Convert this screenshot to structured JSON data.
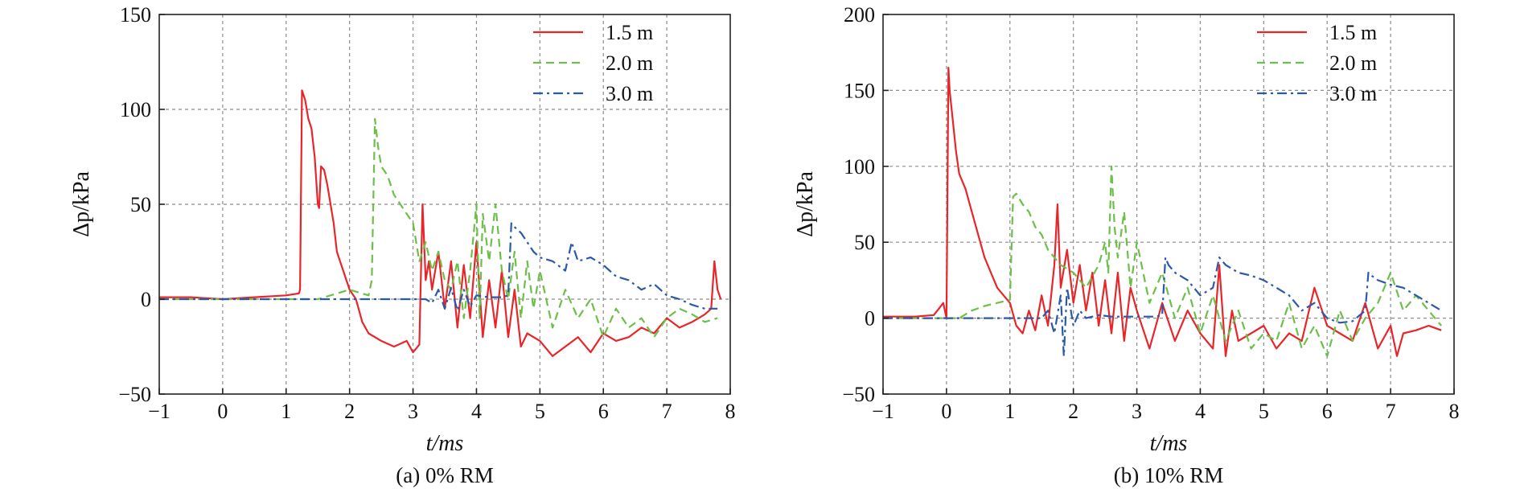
{
  "chart_data": [
    {
      "type": "line",
      "caption": "(a) 0% RM",
      "xlabel": "t/ms",
      "ylabel": "Δp/kPa",
      "xlim": [
        -1,
        8
      ],
      "ylim": [
        -50,
        150
      ],
      "xticks": [
        -1,
        0,
        1,
        2,
        3,
        4,
        5,
        6,
        7,
        8
      ],
      "yticks": [
        -50,
        0,
        50,
        100,
        150
      ],
      "grid": true,
      "legend_position": "top-right",
      "series": [
        {
          "name": "1.5 m",
          "color": "#e8262a",
          "dash": "solid",
          "x": [
            -1.0,
            -0.5,
            0.0,
            0.5,
            1.0,
            1.2,
            1.22,
            1.25,
            1.3,
            1.35,
            1.4,
            1.45,
            1.5,
            1.52,
            1.55,
            1.6,
            1.65,
            1.7,
            1.75,
            1.8,
            1.85,
            1.9,
            1.95,
            2.0,
            2.1,
            2.2,
            2.3,
            2.5,
            2.7,
            2.9,
            3.0,
            3.1,
            3.15,
            3.2,
            3.25,
            3.3,
            3.4,
            3.5,
            3.6,
            3.7,
            3.8,
            3.9,
            4.0,
            4.1,
            4.2,
            4.3,
            4.4,
            4.5,
            4.6,
            4.7,
            4.8,
            5.0,
            5.2,
            5.4,
            5.6,
            5.8,
            6.0,
            6.2,
            6.4,
            6.6,
            6.8,
            7.0,
            7.2,
            7.4,
            7.6,
            7.7,
            7.75,
            7.8,
            7.85
          ],
          "y": [
            1,
            1,
            0,
            1,
            2,
            3,
            5,
            110,
            105,
            95,
            90,
            75,
            50,
            48,
            70,
            68,
            60,
            50,
            40,
            25,
            20,
            15,
            10,
            5,
            0,
            -12,
            -18,
            -22,
            -25,
            -22,
            -28,
            -24,
            50,
            10,
            20,
            5,
            25,
            -5,
            20,
            -15,
            18,
            -10,
            30,
            -20,
            10,
            -15,
            15,
            -20,
            5,
            -25,
            -18,
            -22,
            -30,
            -25,
            -20,
            -28,
            -18,
            -22,
            -20,
            -15,
            -18,
            -10,
            -15,
            -12,
            -8,
            -5,
            20,
            5,
            0
          ]
        },
        {
          "name": "2.0 m",
          "color": "#6cc04a",
          "dash": "dashed",
          "x": [
            -1.0,
            0.0,
            1.0,
            1.5,
            2.0,
            2.3,
            2.35,
            2.4,
            2.45,
            2.5,
            2.6,
            2.7,
            2.8,
            2.9,
            3.0,
            3.1,
            3.2,
            3.3,
            3.4,
            3.5,
            3.6,
            3.7,
            3.8,
            3.9,
            4.0,
            4.05,
            4.1,
            4.2,
            4.3,
            4.4,
            4.5,
            4.6,
            4.7,
            4.8,
            4.9,
            5.0,
            5.2,
            5.4,
            5.6,
            5.8,
            6.0,
            6.2,
            6.4,
            6.6,
            6.8,
            7.0,
            7.2,
            7.4,
            7.6,
            7.8
          ],
          "y": [
            0,
            0,
            0,
            0,
            5,
            2,
            10,
            95,
            80,
            70,
            65,
            55,
            50,
            45,
            40,
            20,
            30,
            15,
            25,
            10,
            5,
            20,
            -10,
            15,
            50,
            -10,
            45,
            20,
            50,
            15,
            0,
            25,
            -10,
            20,
            -5,
            15,
            -15,
            5,
            -10,
            0,
            -20,
            -5,
            -15,
            -10,
            -20,
            -10,
            -5,
            -8,
            -12,
            -10
          ]
        },
        {
          "name": "3.0 m",
          "color": "#2a59a8",
          "dash": "dashdot",
          "x": [
            -1.0,
            0.0,
            1.0,
            2.0,
            3.0,
            3.2,
            3.3,
            3.4,
            3.5,
            3.6,
            3.7,
            3.8,
            3.9,
            4.0,
            4.2,
            4.4,
            4.5,
            4.55,
            4.6,
            4.7,
            4.8,
            4.9,
            5.0,
            5.2,
            5.4,
            5.5,
            5.6,
            5.8,
            6.0,
            6.2,
            6.4,
            6.6,
            6.8,
            7.0,
            7.2,
            7.4,
            7.6,
            7.8
          ],
          "y": [
            0,
            0,
            0,
            0,
            0,
            0,
            -2,
            5,
            -5,
            6,
            -6,
            5,
            -4,
            2,
            1,
            1,
            2,
            40,
            38,
            35,
            30,
            25,
            22,
            20,
            15,
            30,
            20,
            22,
            18,
            12,
            10,
            5,
            8,
            2,
            0,
            -3,
            -5,
            -5
          ]
        }
      ]
    },
    {
      "type": "line",
      "caption": "(b) 10% RM",
      "xlabel": "t/ms",
      "ylabel": "Δp/kPa",
      "xlim": [
        -1,
        8
      ],
      "ylim": [
        -50,
        200
      ],
      "xticks": [
        -1,
        0,
        1,
        2,
        3,
        4,
        5,
        6,
        7,
        8
      ],
      "yticks": [
        -50,
        0,
        50,
        100,
        150,
        200
      ],
      "grid": true,
      "legend_position": "top-right",
      "series": [
        {
          "name": "1.5 m",
          "color": "#e8262a",
          "dash": "solid",
          "x": [
            -1.0,
            -0.5,
            -0.2,
            -0.05,
            0.0,
            0.03,
            0.05,
            0.1,
            0.15,
            0.2,
            0.3,
            0.4,
            0.5,
            0.6,
            0.7,
            0.8,
            0.9,
            1.0,
            1.1,
            1.2,
            1.3,
            1.4,
            1.5,
            1.6,
            1.7,
            1.75,
            1.8,
            1.9,
            2.0,
            2.1,
            2.2,
            2.3,
            2.4,
            2.5,
            2.6,
            2.7,
            2.8,
            2.9,
            3.0,
            3.2,
            3.4,
            3.6,
            3.8,
            4.0,
            4.2,
            4.3,
            4.4,
            4.5,
            4.6,
            4.8,
            5.0,
            5.2,
            5.4,
            5.6,
            5.8,
            6.0,
            6.2,
            6.4,
            6.6,
            6.8,
            7.0,
            7.1,
            7.2,
            7.4,
            7.6,
            7.8
          ],
          "y": [
            1,
            1,
            2,
            10,
            0,
            165,
            150,
            130,
            110,
            95,
            85,
            70,
            55,
            40,
            30,
            20,
            15,
            10,
            -5,
            -10,
            5,
            -8,
            15,
            -5,
            35,
            75,
            20,
            45,
            10,
            35,
            5,
            30,
            -5,
            25,
            -10,
            30,
            -15,
            20,
            5,
            -20,
            10,
            -15,
            5,
            -10,
            -20,
            35,
            -25,
            5,
            -15,
            -10,
            -5,
            -20,
            -10,
            -15,
            20,
            -5,
            -10,
            -15,
            10,
            -20,
            -5,
            -25,
            -10,
            -8,
            -5,
            -8
          ]
        },
        {
          "name": "2.0 m",
          "color": "#6cc04a",
          "dash": "dashed",
          "x": [
            -1.0,
            0.0,
            0.2,
            0.4,
            0.6,
            0.8,
            1.0,
            1.05,
            1.1,
            1.2,
            1.3,
            1.4,
            1.5,
            1.6,
            1.7,
            1.8,
            2.0,
            2.2,
            2.4,
            2.5,
            2.55,
            2.6,
            2.65,
            2.7,
            2.8,
            2.9,
            3.0,
            3.2,
            3.4,
            3.6,
            3.8,
            4.0,
            4.2,
            4.4,
            4.6,
            4.8,
            5.0,
            5.2,
            5.4,
            5.6,
            5.8,
            6.0,
            6.2,
            6.4,
            6.6,
            6.8,
            7.0,
            7.2,
            7.4,
            7.6,
            7.8
          ],
          "y": [
            0,
            0,
            0,
            5,
            8,
            10,
            12,
            80,
            82,
            75,
            70,
            60,
            55,
            45,
            40,
            35,
            30,
            20,
            35,
            50,
            30,
            100,
            60,
            40,
            70,
            20,
            50,
            10,
            30,
            0,
            20,
            -10,
            15,
            -15,
            5,
            -20,
            -10,
            -15,
            10,
            -20,
            -5,
            -25,
            5,
            -15,
            0,
            10,
            30,
            5,
            15,
            5,
            -5
          ]
        },
        {
          "name": "3.0 m",
          "color": "#2a59a8",
          "dash": "dashdot",
          "x": [
            -1.0,
            0.0,
            1.0,
            1.5,
            1.6,
            1.7,
            1.8,
            1.85,
            1.9,
            2.0,
            2.1,
            2.2,
            2.4,
            2.6,
            2.8,
            3.0,
            3.3,
            3.4,
            3.45,
            3.5,
            3.6,
            3.8,
            4.0,
            4.2,
            4.3,
            4.4,
            4.6,
            4.8,
            5.0,
            5.2,
            5.4,
            5.6,
            5.8,
            6.0,
            6.2,
            6.4,
            6.6,
            6.65,
            6.7,
            6.8,
            7.0,
            7.2,
            7.4,
            7.6,
            7.8
          ],
          "y": [
            0,
            0,
            0,
            0,
            5,
            -10,
            15,
            -25,
            20,
            -5,
            5,
            0,
            2,
            1,
            1,
            1,
            1,
            2,
            40,
            35,
            30,
            25,
            15,
            20,
            40,
            35,
            30,
            28,
            25,
            20,
            15,
            5,
            10,
            0,
            -3,
            -2,
            5,
            30,
            28,
            25,
            22,
            20,
            15,
            10,
            5
          ]
        }
      ]
    }
  ]
}
